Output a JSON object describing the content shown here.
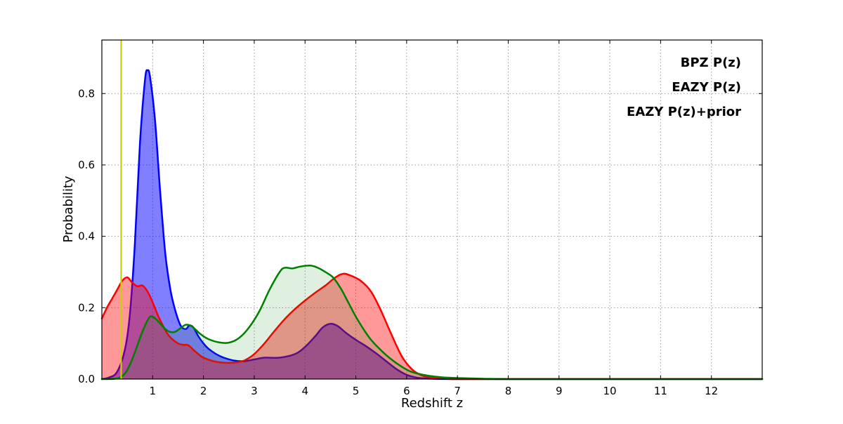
{
  "chart_data": {
    "type": "area",
    "title": "",
    "xlabel": "Redshift z",
    "ylabel": "Probability",
    "xlim": [
      0,
      13
    ],
    "ylim": [
      0,
      0.95
    ],
    "xticks": [
      1,
      2,
      3,
      4,
      5,
      6,
      7,
      8,
      9,
      10,
      11,
      12
    ],
    "yticks": [
      0.0,
      0.2,
      0.4,
      0.6,
      0.8
    ],
    "grid": true,
    "legend_position": "upper right",
    "vline": {
      "x": 0.38,
      "color": "#cdcd00",
      "name": "reference-redshift-line"
    },
    "series": [
      {
        "name": "BPZ P(z)",
        "color": "#0000ff",
        "fill_opacity": 0.5,
        "points": [
          [
            0,
            0
          ],
          [
            0.15,
            0.005
          ],
          [
            0.3,
            0.02
          ],
          [
            0.45,
            0.08
          ],
          [
            0.55,
            0.18
          ],
          [
            0.65,
            0.38
          ],
          [
            0.75,
            0.66
          ],
          [
            0.85,
            0.84
          ],
          [
            0.9,
            0.865
          ],
          [
            0.95,
            0.845
          ],
          [
            1.05,
            0.72
          ],
          [
            1.15,
            0.52
          ],
          [
            1.25,
            0.35
          ],
          [
            1.35,
            0.25
          ],
          [
            1.45,
            0.19
          ],
          [
            1.55,
            0.15
          ],
          [
            1.65,
            0.14
          ],
          [
            1.72,
            0.15
          ],
          [
            1.8,
            0.145
          ],
          [
            1.9,
            0.12
          ],
          [
            2.0,
            0.1
          ],
          [
            2.1,
            0.085
          ],
          [
            2.25,
            0.07
          ],
          [
            2.4,
            0.06
          ],
          [
            2.6,
            0.052
          ],
          [
            2.8,
            0.05
          ],
          [
            3.0,
            0.055
          ],
          [
            3.2,
            0.06
          ],
          [
            3.5,
            0.06
          ],
          [
            3.8,
            0.07
          ],
          [
            4.0,
            0.09
          ],
          [
            4.2,
            0.12
          ],
          [
            4.35,
            0.145
          ],
          [
            4.5,
            0.155
          ],
          [
            4.65,
            0.148
          ],
          [
            4.8,
            0.13
          ],
          [
            5.0,
            0.11
          ],
          [
            5.2,
            0.092
          ],
          [
            5.4,
            0.072
          ],
          [
            5.6,
            0.05
          ],
          [
            5.8,
            0.028
          ],
          [
            6.0,
            0.012
          ],
          [
            6.2,
            0.004
          ],
          [
            6.5,
            0.001
          ],
          [
            7,
            0
          ],
          [
            8,
            0
          ],
          [
            9,
            0
          ],
          [
            10,
            0
          ],
          [
            11,
            0
          ],
          [
            12,
            0
          ],
          [
            13,
            0
          ]
        ]
      },
      {
        "name": "EAZY P(z)",
        "color": "#ff0000",
        "fill_opacity": 0.4,
        "points": [
          [
            0,
            0.17
          ],
          [
            0.1,
            0.2
          ],
          [
            0.2,
            0.225
          ],
          [
            0.3,
            0.25
          ],
          [
            0.4,
            0.275
          ],
          [
            0.5,
            0.285
          ],
          [
            0.6,
            0.27
          ],
          [
            0.7,
            0.26
          ],
          [
            0.8,
            0.262
          ],
          [
            0.9,
            0.245
          ],
          [
            1.0,
            0.215
          ],
          [
            1.1,
            0.18
          ],
          [
            1.2,
            0.15
          ],
          [
            1.3,
            0.125
          ],
          [
            1.4,
            0.11
          ],
          [
            1.5,
            0.1
          ],
          [
            1.6,
            0.096
          ],
          [
            1.7,
            0.095
          ],
          [
            1.8,
            0.082
          ],
          [
            1.9,
            0.07
          ],
          [
            2.0,
            0.06
          ],
          [
            2.2,
            0.05
          ],
          [
            2.4,
            0.046
          ],
          [
            2.6,
            0.046
          ],
          [
            2.8,
            0.052
          ],
          [
            3.0,
            0.07
          ],
          [
            3.2,
            0.1
          ],
          [
            3.4,
            0.135
          ],
          [
            3.6,
            0.168
          ],
          [
            3.8,
            0.196
          ],
          [
            4.0,
            0.22
          ],
          [
            4.2,
            0.242
          ],
          [
            4.4,
            0.262
          ],
          [
            4.6,
            0.285
          ],
          [
            4.75,
            0.295
          ],
          [
            4.9,
            0.29
          ],
          [
            5.1,
            0.275
          ],
          [
            5.3,
            0.245
          ],
          [
            5.5,
            0.19
          ],
          [
            5.7,
            0.125
          ],
          [
            5.9,
            0.065
          ],
          [
            6.1,
            0.028
          ],
          [
            6.3,
            0.01
          ],
          [
            6.5,
            0.004
          ],
          [
            6.8,
            0.001
          ],
          [
            7,
            0
          ],
          [
            8,
            0
          ],
          [
            9,
            0
          ],
          [
            10,
            0
          ],
          [
            11,
            0
          ],
          [
            12,
            0
          ],
          [
            13,
            0
          ]
        ]
      },
      {
        "name": "EAZY P(z)+prior",
        "color": "#008000",
        "fill_opacity": 0.12,
        "points": [
          [
            0,
            0
          ],
          [
            0.3,
            0.002
          ],
          [
            0.45,
            0.015
          ],
          [
            0.55,
            0.04
          ],
          [
            0.65,
            0.075
          ],
          [
            0.75,
            0.115
          ],
          [
            0.85,
            0.15
          ],
          [
            0.95,
            0.175
          ],
          [
            1.05,
            0.17
          ],
          [
            1.15,
            0.155
          ],
          [
            1.25,
            0.14
          ],
          [
            1.35,
            0.132
          ],
          [
            1.45,
            0.133
          ],
          [
            1.55,
            0.143
          ],
          [
            1.65,
            0.152
          ],
          [
            1.75,
            0.15
          ],
          [
            1.85,
            0.138
          ],
          [
            1.95,
            0.125
          ],
          [
            2.1,
            0.112
          ],
          [
            2.3,
            0.103
          ],
          [
            2.5,
            0.102
          ],
          [
            2.7,
            0.115
          ],
          [
            2.9,
            0.145
          ],
          [
            3.1,
            0.19
          ],
          [
            3.3,
            0.25
          ],
          [
            3.5,
            0.3
          ],
          [
            3.6,
            0.312
          ],
          [
            3.75,
            0.31
          ],
          [
            3.9,
            0.315
          ],
          [
            4.1,
            0.318
          ],
          [
            4.25,
            0.312
          ],
          [
            4.4,
            0.3
          ],
          [
            4.55,
            0.285
          ],
          [
            4.7,
            0.255
          ],
          [
            4.85,
            0.215
          ],
          [
            5.0,
            0.175
          ],
          [
            5.15,
            0.14
          ],
          [
            5.3,
            0.11
          ],
          [
            5.5,
            0.08
          ],
          [
            5.7,
            0.055
          ],
          [
            5.9,
            0.035
          ],
          [
            6.1,
            0.02
          ],
          [
            6.4,
            0.01
          ],
          [
            6.7,
            0.005
          ],
          [
            7,
            0.003
          ],
          [
            7.5,
            0.001
          ],
          [
            8,
            0
          ],
          [
            9,
            0
          ],
          [
            10,
            0
          ],
          [
            11,
            0
          ],
          [
            12,
            0
          ],
          [
            13,
            0
          ]
        ]
      }
    ]
  }
}
